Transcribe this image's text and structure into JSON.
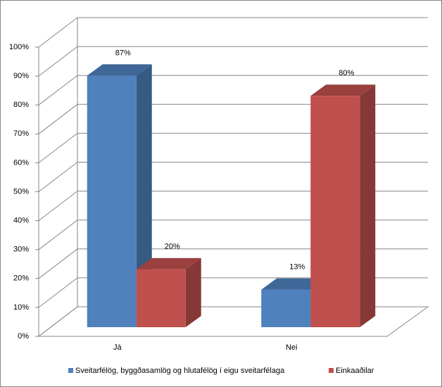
{
  "chart_data": {
    "type": "bar3d",
    "categories": [
      "Já",
      "Nei"
    ],
    "series": [
      {
        "name": "Sveitarfélög, byggðasamlög og hlutafélög í eigu sveitarfélaga",
        "color": "#4f81bd",
        "values": [
          87,
          13
        ],
        "value_labels": [
          "87%",
          "13%"
        ]
      },
      {
        "name": "Einkaaðilar",
        "color": "#c0504d",
        "values": [
          20,
          80
        ],
        "value_labels": [
          "20%",
          "80%"
        ]
      }
    ],
    "ylim": [
      0,
      100
    ],
    "yticks": [
      {
        "value": 0,
        "label": "0%"
      },
      {
        "value": 10,
        "label": "10%"
      },
      {
        "value": 20,
        "label": "20%"
      },
      {
        "value": 30,
        "label": "30%"
      },
      {
        "value": 40,
        "label": "40%"
      },
      {
        "value": 50,
        "label": "50%"
      },
      {
        "value": 60,
        "label": "60%"
      },
      {
        "value": 70,
        "label": "70%"
      },
      {
        "value": 80,
        "label": "80%"
      },
      {
        "value": 90,
        "label": "90%"
      },
      {
        "value": 100,
        "label": "100%"
      }
    ],
    "grid": true,
    "legend": "bottom"
  }
}
